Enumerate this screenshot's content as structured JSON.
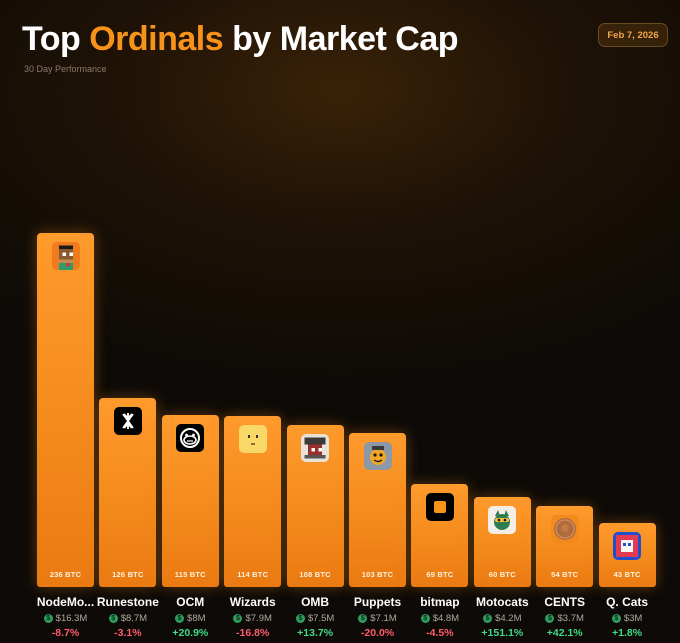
{
  "header": {
    "title_pre": "Top ",
    "title_highlight": "Ordinals",
    "title_post": " by Market Cap",
    "subtitle": "30 Day Performance",
    "date": "Feb 7, 2026"
  },
  "colors": {
    "accent": "#f7931a",
    "bar": "#f48a1c",
    "negative": "#ff5c6c",
    "positive": "#3ddc84",
    "dollar_badge": "#2f9e5c"
  },
  "chart_data": {
    "type": "bar",
    "title": "Top Ordinals by Market Cap",
    "subtitle": "30 Day Performance",
    "unit": "BTC",
    "ylim": [
      0,
      236
    ],
    "grid": false,
    "categories": [
      "NodeMonkes",
      "Runestone",
      "OCM",
      "Wizards",
      "OMB",
      "Puppets",
      "bitmap",
      "Motocats",
      "CENTS",
      "Q. Cats"
    ],
    "display_names": [
      "NodeMo...",
      "Runestone",
      "OCM",
      "Wizards",
      "OMB",
      "Puppets",
      "bitmap",
      "Motocats",
      "CENTS",
      "Q. Cats"
    ],
    "values": [
      236,
      126,
      115,
      114,
      108,
      103,
      69,
      60,
      54,
      43
    ],
    "value_labels": [
      "236 BTC",
      "126 BTC",
      "115 BTC",
      "114 BTC",
      "108 BTC",
      "103 BTC",
      "69 BTC",
      "60 BTC",
      "54 BTC",
      "43 BTC"
    ],
    "market_cap_usd": [
      "$16.3M",
      "$8.7M",
      "$8M",
      "$7.9M",
      "$7.5M",
      "$7.1M",
      "$4.8M",
      "$4.2M",
      "$3.7M",
      "$3M"
    ],
    "change_30d": [
      "-8.7%",
      "-3.1%",
      "+20.9%",
      "-16.8%",
      "+13.7%",
      "-20.0%",
      "-4.5%",
      "+151.1%",
      "+42.1%",
      "+1.8%"
    ],
    "change_direction": [
      "down",
      "down",
      "up",
      "down",
      "up",
      "down",
      "down",
      "up",
      "up",
      "up"
    ],
    "icons": [
      "nodemonkes-pixel-monkey-icon",
      "runestone-rune-icon",
      "ocm-monkey-face-icon",
      "wizards-yellow-face-icon",
      "omb-pixel-art-icon",
      "puppets-character-icon",
      "bitmap-square-icon",
      "motocats-cat-icon",
      "cents-penny-icon",
      "quantum-cats-icon"
    ]
  }
}
